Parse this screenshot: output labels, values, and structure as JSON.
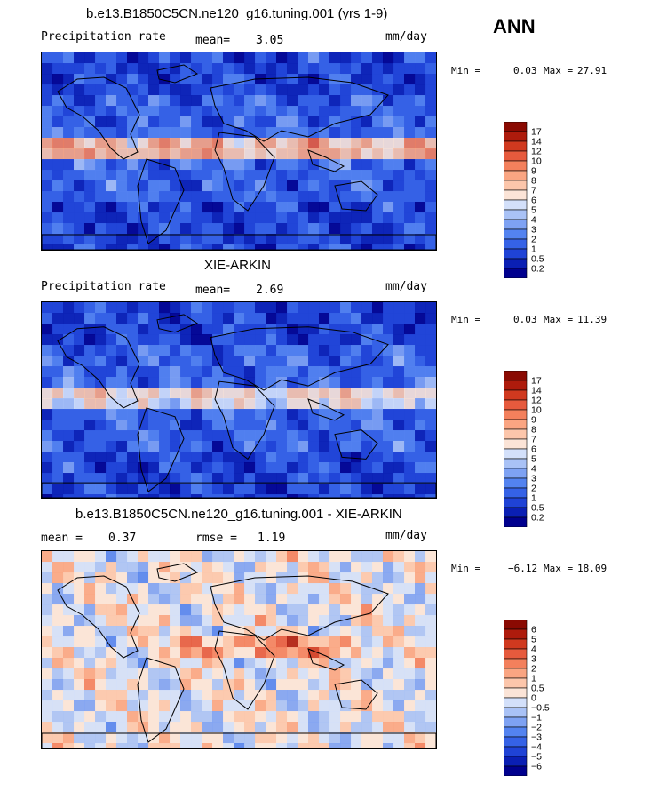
{
  "season": "ANN",
  "palettes": {
    "precip": [
      "#00008e",
      "#0a1fb4",
      "#1f43d6",
      "#3562e6",
      "#5383f0",
      "#7ea2f3",
      "#a9c2f6",
      "#d3e0fa",
      "#fbe4d7",
      "#fcc6ab",
      "#faa582",
      "#f3805c",
      "#e65a3d",
      "#d0391f",
      "#ae1b0c",
      "#8a0a02"
    ],
    "diff": [
      "#00008e",
      "#0a1fb4",
      "#1f43d6",
      "#3562e6",
      "#5383f0",
      "#7ea2f3",
      "#a9c2f6",
      "#d3e0fa",
      "#fbe4d7",
      "#fcc6ab",
      "#faa582",
      "#f3805c",
      "#e65a3d",
      "#d0391f",
      "#ae1b0c",
      "#8a0a02"
    ],
    "coast": "#000000"
  },
  "chart_data": [
    {
      "type": "heatmap",
      "title": "b.e13.B1850C5CN.ne120_g16.tuning.001 (yrs 1-9)",
      "left_label": "Precipitation rate",
      "mean_label": "mean=",
      "mean_value": "3.05",
      "units": "mm/day",
      "min_label": "Min =",
      "min_value": "0.03",
      "max_label": "Max =",
      "max_value": "27.91",
      "colorbar_labels": [
        "17",
        "14",
        "12",
        "10",
        "9",
        "8",
        "7",
        "6",
        "5",
        "4",
        "3",
        "2",
        "1",
        "0.5",
        "0.2"
      ],
      "palette": "precip"
    },
    {
      "type": "heatmap",
      "title": "XIE-ARKIN",
      "left_label": "Precipitation rate",
      "mean_label": "mean=",
      "mean_value": "2.69",
      "units": "mm/day",
      "min_label": "Min =",
      "min_value": "0.03",
      "max_label": "Max =",
      "max_value": "11.39",
      "colorbar_labels": [
        "17",
        "14",
        "12",
        "10",
        "9",
        "8",
        "7",
        "6",
        "5",
        "4",
        "3",
        "2",
        "1",
        "0.5",
        "0.2"
      ],
      "palette": "precip"
    },
    {
      "type": "heatmap",
      "title": "b.e13.B1850C5CN.ne120_g16.tuning.001 - XIE-ARKIN",
      "left_label": "mean =",
      "mean_label": "",
      "mean_value": "0.37",
      "rmse_label": "rmse =",
      "rmse_value": "1.19",
      "units": "mm/day",
      "min_label": "Min =",
      "min_value": "−6.12",
      "max_label": "Max =",
      "max_value": "18.09",
      "colorbar_labels": [
        "6",
        "5",
        "4",
        "3",
        "2",
        "1",
        "0.5",
        "0",
        "−0.5",
        "−1",
        "−2",
        "−3",
        "−4",
        "−5",
        "−6"
      ],
      "palette": "diff"
    }
  ]
}
